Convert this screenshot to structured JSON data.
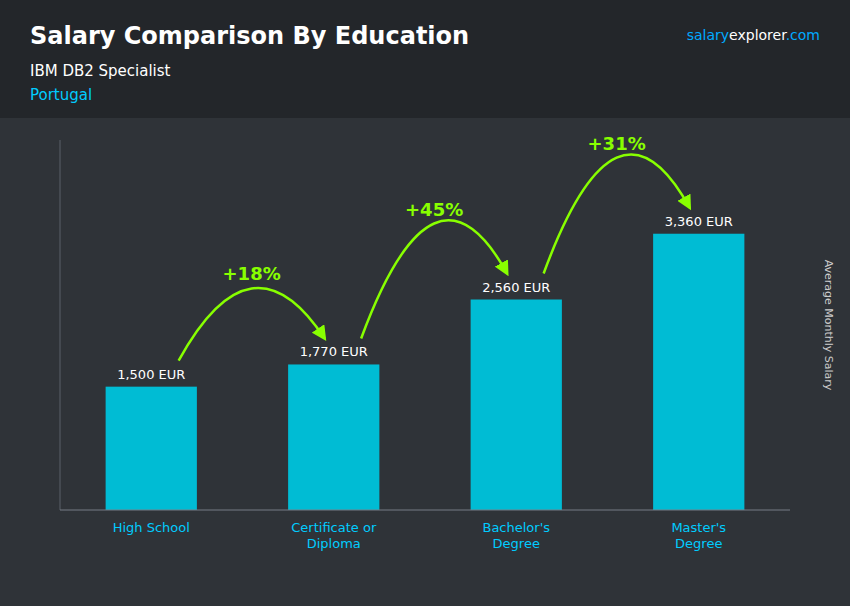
{
  "chart_data": {
    "type": "bar",
    "title": "Salary Comparison By Education",
    "subtitle": [
      "IBM DB2 Specialist",
      "Portugal"
    ],
    "website": [
      "salary",
      "explorer",
      ".com"
    ],
    "ylabel": "Average Monthly Salary",
    "categories": [
      "High School",
      "Certificate or\nDiploma",
      "Bachelor's\nDegree",
      "Master's\nDegree"
    ],
    "values": [
      1500,
      1770,
      2560,
      3360
    ],
    "value_labels": [
      "1,500 EUR",
      "1,770 EUR",
      "2,560 EUR",
      "3,360 EUR"
    ],
    "data_labels": true,
    "annotations": [
      "+18%",
      "+45%",
      "+31%"
    ],
    "annotation_color": "#88ff00",
    "color": "#00bcd4",
    "ylim": [
      0,
      4500
    ],
    "tick_labels": "x",
    "grid": false
  }
}
